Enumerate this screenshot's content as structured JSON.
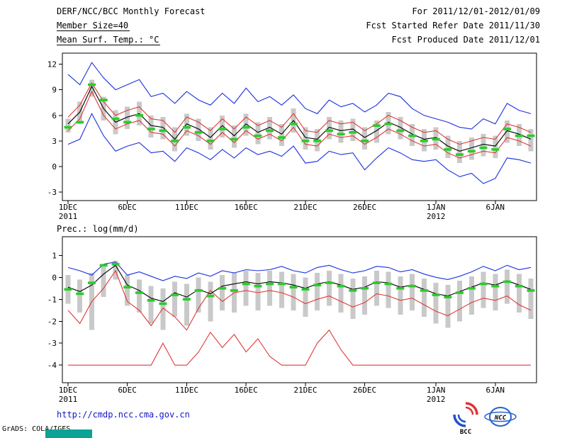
{
  "header": {
    "title": "DERF/NCC/BCC Monthly Forecast",
    "period": "For 2011/12/01-2012/01/09",
    "member_size": "Member Size=40",
    "refer_date": "Fcst Started Refer Date 2011/11/30",
    "temp_label": "Mean Surf. Temp.: °C",
    "produced_date": "Fcst Produced Date 2011/12/01"
  },
  "precip_label": "Prec.: log(mm/d)",
  "footer": {
    "url": "http://cmdp.ncc.cma.gov.cn",
    "grads_credit": "GrADS: COLA/IGES",
    "logo_bcc": "BCC",
    "logo_ncc": "NCC"
  },
  "colors": {
    "line_blue": "#1a2fe0",
    "line_red": "#e03838",
    "line_black": "#000000",
    "dash_green": "#2bcc2b",
    "bar_gray": "#c9c9c9",
    "grads_box": "#0aa396",
    "url_blue": "#1616c8"
  },
  "chart_data": [
    {
      "type": "line",
      "title": "Mean Surf. Temp.: °C",
      "ylabel": "°C",
      "n_days": 40,
      "ylim": [
        -4,
        13.3
      ],
      "yticks": [
        -3,
        0,
        3,
        6,
        9,
        12
      ],
      "x_tick_days": [
        0,
        5,
        10,
        15,
        20,
        25,
        31,
        36
      ],
      "x_tick_labels": [
        "1DEC",
        "6DEC",
        "11DEC",
        "16DEC",
        "21DEC",
        "26DEC",
        "1JAN",
        "6JAN"
      ],
      "x_sub_labels": [
        {
          "day": 0,
          "label": "2011"
        },
        {
          "day": 31,
          "label": "2012"
        }
      ],
      "bars": {
        "name": "ensemble-spread",
        "color": "#c9c9c9",
        "high": [
          5.6,
          7.6,
          10.2,
          8.2,
          6.6,
          7.0,
          7.6,
          6.0,
          5.8,
          4.6,
          6.2,
          5.6,
          4.6,
          6.0,
          4.8,
          6.2,
          5.2,
          5.8,
          5.0,
          6.8,
          4.6,
          4.4,
          5.8,
          5.4,
          5.6,
          4.6,
          5.4,
          6.4,
          5.8,
          5.0,
          4.4,
          4.6,
          3.6,
          3.0,
          3.4,
          3.8,
          3.6,
          5.4,
          5.0,
          4.4
        ],
        "low": [
          4.0,
          5.0,
          8.2,
          5.4,
          3.8,
          4.4,
          4.8,
          3.4,
          3.2,
          1.8,
          3.6,
          3.0,
          2.0,
          3.4,
          2.2,
          3.6,
          2.6,
          3.2,
          2.4,
          4.0,
          2.0,
          1.8,
          3.2,
          2.8,
          3.0,
          2.0,
          2.8,
          3.8,
          3.2,
          2.4,
          1.8,
          2.0,
          1.0,
          0.4,
          0.8,
          1.2,
          1.0,
          2.8,
          2.4,
          1.8
        ]
      },
      "series": [
        {
          "name": "ensemble-max",
          "color": "#1a2fe0",
          "values": [
            10.8,
            9.6,
            12.2,
            10.4,
            9.0,
            9.6,
            10.2,
            8.2,
            8.6,
            7.4,
            8.8,
            7.8,
            7.2,
            8.6,
            7.4,
            9.2,
            7.6,
            8.2,
            7.2,
            8.4,
            6.8,
            6.2,
            7.8,
            7.0,
            7.4,
            6.4,
            7.2,
            8.6,
            8.2,
            6.8,
            6.0,
            5.6,
            5.2,
            4.6,
            4.4,
            5.6,
            5.0,
            7.4,
            6.6,
            6.2
          ]
        },
        {
          "name": "ensemble-min",
          "color": "#1a2fe0",
          "values": [
            2.6,
            3.2,
            6.2,
            3.6,
            1.8,
            2.4,
            2.8,
            1.6,
            1.8,
            0.6,
            2.2,
            1.6,
            0.8,
            2.0,
            1.0,
            2.2,
            1.4,
            1.8,
            1.2,
            2.4,
            0.4,
            0.6,
            1.8,
            1.4,
            1.6,
            -0.4,
            1.0,
            2.2,
            1.6,
            0.8,
            0.6,
            0.8,
            -0.4,
            -1.2,
            -0.8,
            -2.0,
            -1.4,
            1.0,
            0.8,
            0.4
          ]
        },
        {
          "name": "quartile-upper",
          "color": "#e03838",
          "values": [
            5.8,
            7.2,
            9.8,
            7.6,
            6.0,
            6.6,
            7.0,
            5.6,
            5.4,
            4.0,
            5.8,
            5.2,
            4.2,
            5.6,
            4.4,
            5.8,
            4.8,
            5.4,
            4.6,
            6.2,
            4.2,
            4.0,
            5.4,
            5.0,
            5.2,
            4.2,
            5.0,
            6.0,
            5.4,
            4.6,
            4.0,
            4.2,
            3.2,
            2.6,
            3.0,
            3.4,
            3.2,
            5.0,
            4.6,
            4.0
          ]
        },
        {
          "name": "quartile-lower",
          "color": "#e03838",
          "values": [
            4.2,
            5.6,
            8.8,
            6.0,
            4.4,
            5.0,
            5.4,
            4.0,
            3.8,
            2.4,
            4.2,
            3.6,
            2.6,
            4.0,
            2.8,
            4.2,
            3.2,
            3.8,
            3.0,
            4.6,
            2.6,
            2.4,
            3.8,
            3.4,
            3.6,
            2.6,
            3.4,
            4.4,
            3.8,
            3.0,
            2.4,
            2.6,
            1.6,
            1.0,
            1.4,
            1.8,
            1.6,
            3.4,
            3.0,
            2.4
          ]
        },
        {
          "name": "ensemble-mean",
          "color": "#000000",
          "values": [
            5.0,
            6.4,
            9.4,
            6.8,
            5.2,
            5.8,
            6.2,
            4.8,
            4.6,
            3.2,
            5.0,
            4.4,
            3.4,
            4.8,
            3.6,
            5.0,
            4.0,
            4.6,
            3.8,
            5.4,
            3.4,
            3.2,
            4.6,
            4.2,
            4.4,
            3.4,
            4.2,
            5.2,
            4.6,
            3.8,
            3.2,
            3.4,
            2.4,
            1.8,
            2.2,
            2.6,
            2.4,
            4.2,
            3.8,
            3.2
          ]
        }
      ],
      "dashes": {
        "name": "observation",
        "color": "#2bcc2b",
        "values": [
          4.6,
          5.2,
          9.6,
          7.8,
          5.6,
          5.2,
          6.0,
          4.4,
          4.2,
          3.0,
          4.6,
          4.0,
          3.0,
          4.4,
          3.2,
          4.6,
          3.6,
          4.2,
          3.4,
          5.0,
          3.0,
          3.0,
          4.2,
          3.8,
          4.0,
          3.0,
          4.8,
          5.0,
          4.2,
          3.6,
          3.0,
          3.2,
          2.0,
          1.4,
          1.8,
          2.2,
          2.0,
          4.4,
          3.6,
          3.6
        ]
      }
    },
    {
      "type": "line",
      "title": "Prec.: log(mm/d)",
      "ylabel": "log(mm/d)",
      "n_days": 40,
      "ylim": [
        -4.8,
        1.85
      ],
      "yticks": [
        -4,
        -3,
        -2,
        -1,
        0,
        1
      ],
      "x_tick_days": [
        0,
        5,
        10,
        15,
        20,
        25,
        31,
        36
      ],
      "x_tick_labels": [
        "1DEC",
        "6DEC",
        "11DEC",
        "16DEC",
        "21DEC",
        "26DEC",
        "1JAN",
        "6JAN"
      ],
      "x_sub_labels": [
        {
          "day": 0,
          "label": "2011"
        },
        {
          "day": 31,
          "label": "2012"
        }
      ],
      "bars": {
        "name": "ensemble-spread",
        "color": "#c9c9c9",
        "high": [
          0.1,
          -0.1,
          0.2,
          0.6,
          0.75,
          0.1,
          -0.1,
          -0.4,
          -0.5,
          -0.2,
          -0.3,
          0.0,
          -0.2,
          0.1,
          0.2,
          0.3,
          0.2,
          0.3,
          0.25,
          0.15,
          0.0,
          0.2,
          0.3,
          0.15,
          -0.05,
          0.05,
          0.3,
          0.25,
          0.05,
          0.15,
          -0.05,
          -0.25,
          -0.35,
          -0.15,
          0.05,
          0.25,
          0.15,
          0.35,
          0.15,
          -0.05
        ],
        "low": [
          -1.2,
          -1.6,
          -2.4,
          -0.9,
          -0.1,
          -1.3,
          -1.6,
          -2.1,
          -2.4,
          -1.8,
          -2.2,
          -1.6,
          -2.0,
          -1.5,
          -1.6,
          -1.3,
          -1.5,
          -1.3,
          -1.4,
          -1.5,
          -1.8,
          -1.5,
          -1.3,
          -1.6,
          -1.9,
          -1.7,
          -1.3,
          -1.4,
          -1.7,
          -1.5,
          -1.8,
          -2.1,
          -2.3,
          -2.0,
          -1.7,
          -1.4,
          -1.5,
          -1.2,
          -1.6,
          -1.9
        ]
      },
      "series": [
        {
          "name": "ensemble-max",
          "color": "#1a2fe0",
          "values": [
            0.45,
            0.3,
            0.1,
            0.6,
            0.7,
            0.1,
            0.25,
            0.05,
            -0.15,
            0.05,
            -0.05,
            0.2,
            0.05,
            0.3,
            0.2,
            0.35,
            0.3,
            0.35,
            0.5,
            0.3,
            0.2,
            0.45,
            0.55,
            0.35,
            0.2,
            0.3,
            0.5,
            0.45,
            0.25,
            0.35,
            0.15,
            0.0,
            -0.1,
            0.05,
            0.25,
            0.5,
            0.3,
            0.55,
            0.35,
            0.45
          ]
        },
        {
          "name": "quartile-lower",
          "color": "#e03838",
          "values": [
            -1.5,
            -2.1,
            -1.1,
            -0.5,
            0.3,
            -1.1,
            -1.5,
            -2.2,
            -1.4,
            -1.8,
            -2.4,
            -1.4,
            -0.6,
            -1.1,
            -0.7,
            -0.6,
            -0.7,
            -0.6,
            -0.7,
            -0.9,
            -1.2,
            -1.0,
            -0.85,
            -1.1,
            -1.35,
            -1.15,
            -0.75,
            -0.85,
            -1.05,
            -0.95,
            -1.25,
            -1.55,
            -1.75,
            -1.45,
            -1.15,
            -0.95,
            -1.05,
            -0.85,
            -1.25,
            -1.5
          ]
        },
        {
          "name": "ensemble-min",
          "color": "#e03838",
          "values": [
            -4.0,
            -4.0,
            -4.0,
            -4.0,
            -4.0,
            -4.0,
            -4.0,
            -4.0,
            -3.0,
            -4.0,
            -4.0,
            -3.4,
            -2.5,
            -3.2,
            -2.6,
            -3.4,
            -2.8,
            -3.6,
            -4.0,
            -4.0,
            -4.0,
            -3.0,
            -2.4,
            -3.3,
            -4.0,
            -4.0,
            -4.0,
            -4.0,
            -4.0,
            -4.0,
            -4.0,
            -4.0,
            -4.0,
            -4.0,
            -4.0,
            -4.0,
            -4.0,
            -4.0,
            -4.0,
            -4.0
          ]
        },
        {
          "name": "ensemble-mean",
          "color": "#000000",
          "values": [
            -0.45,
            -0.65,
            -0.35,
            0.15,
            0.55,
            -0.35,
            -0.6,
            -0.95,
            -1.1,
            -0.7,
            -0.9,
            -0.55,
            -0.75,
            -0.4,
            -0.3,
            -0.2,
            -0.3,
            -0.2,
            -0.25,
            -0.35,
            -0.5,
            -0.3,
            -0.2,
            -0.35,
            -0.55,
            -0.45,
            -0.2,
            -0.25,
            -0.45,
            -0.35,
            -0.55,
            -0.75,
            -0.85,
            -0.65,
            -0.45,
            -0.25,
            -0.35,
            -0.15,
            -0.35,
            -0.55
          ]
        }
      ],
      "dashes": {
        "name": "observation",
        "color": "#2bcc2b",
        "values": [
          -0.55,
          -0.75,
          -0.25,
          0.55,
          0.6,
          -0.45,
          -0.7,
          -1.05,
          -1.2,
          -0.8,
          -1.0,
          -0.6,
          -0.85,
          -0.5,
          -0.6,
          -0.3,
          -0.4,
          -0.3,
          -0.3,
          -0.45,
          -0.55,
          -0.35,
          -0.25,
          -0.4,
          -0.6,
          -0.5,
          -0.25,
          -0.3,
          -0.5,
          -0.4,
          -0.6,
          -0.8,
          -0.9,
          -0.7,
          -0.5,
          -0.3,
          -0.4,
          -0.2,
          -0.4,
          -0.6
        ]
      }
    }
  ]
}
